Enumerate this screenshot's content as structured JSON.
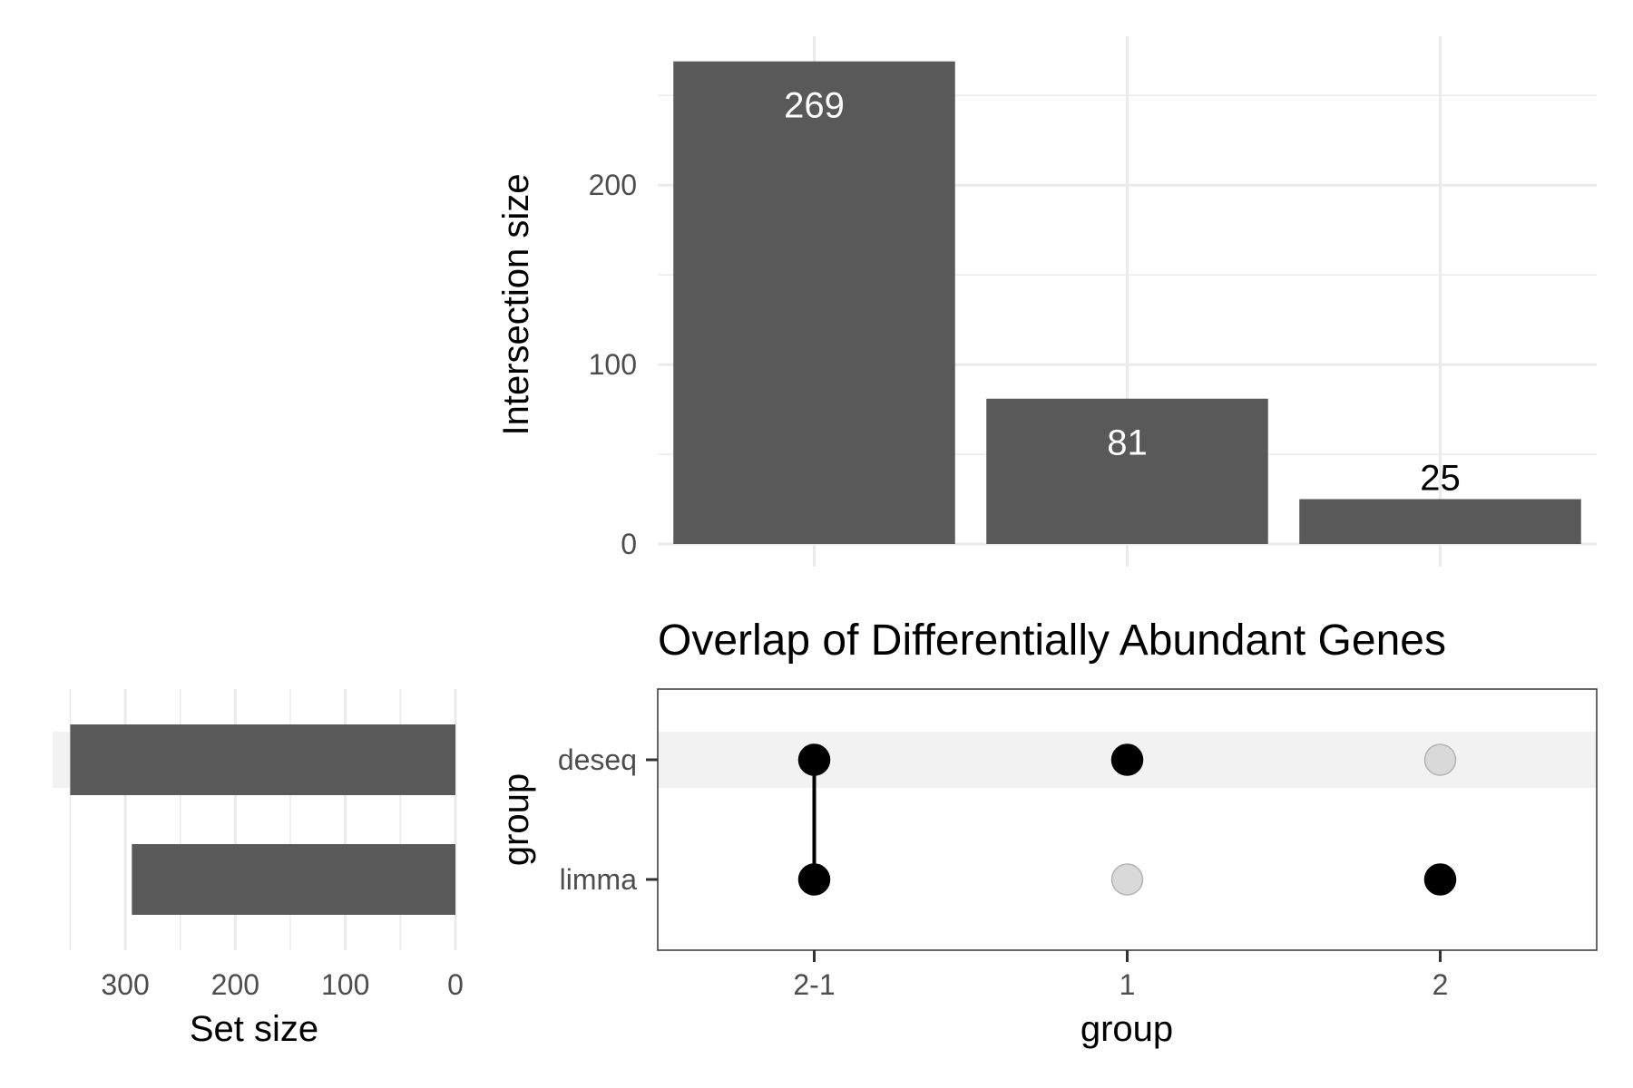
{
  "chart_data": [
    {
      "type": "bar",
      "categories": [
        "2-1",
        "1",
        "2"
      ],
      "values": [
        269,
        81,
        25
      ],
      "data_labels": [
        "269",
        "81",
        "25"
      ],
      "ylabel": "Intersection size",
      "yticks": [
        "0",
        "100",
        "200"
      ],
      "ylim": [
        0,
        283
      ],
      "grid": true
    },
    {
      "type": "bar",
      "orientation": "horizontal",
      "categories": [
        "deseq",
        "limma"
      ],
      "values": [
        350,
        294
      ],
      "xlabel": "Set size",
      "xticks": [
        "300",
        "200",
        "100",
        "0"
      ],
      "xlim": [
        366,
        0
      ],
      "grid": true
    },
    {
      "type": "scatter",
      "title": "Overlap of Differentially Abundant Genes",
      "xlabel": "group",
      "ylabel": "group",
      "x_categories": [
        "2-1",
        "1",
        "2"
      ],
      "y_categories": [
        "deseq",
        "limma"
      ],
      "membership": [
        {
          "intersection": "2-1",
          "deseq": true,
          "limma": true
        },
        {
          "intersection": "1",
          "deseq": true,
          "limma": false
        },
        {
          "intersection": "2",
          "deseq": false,
          "limma": true
        }
      ]
    }
  ],
  "colors": {
    "bar": "#595959",
    "dot_active": "#000000",
    "dot_inactive": "#d9d9d9",
    "dot_inactive_stroke": "#b3b3b3",
    "grid": "#ebebeb",
    "stripe": "#f2f2f2",
    "bar_label_inside": "#ffffff",
    "bar_label_outside": "#000000"
  }
}
